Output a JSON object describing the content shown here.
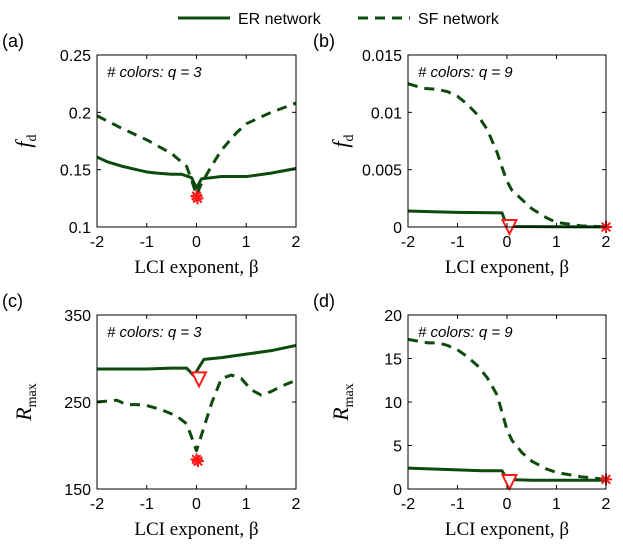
{
  "colors": {
    "er": "#0d4a0d",
    "sf": "#0d4a0d",
    "marker": "#ff1a1a",
    "axis": "#000000"
  },
  "legend": {
    "er_label": "ER network",
    "sf_label": "SF network"
  },
  "chart_data": [
    {
      "type": "line",
      "panel_label": "(a)",
      "annotation": "# colors: q = 3",
      "ylabel": "f",
      "ylabel_sub": "d",
      "xlabel": "LCI exponent, β",
      "xlim": [
        -2,
        2
      ],
      "ylim": [
        0.1,
        0.25
      ],
      "xticks": [
        "-2",
        "-1",
        "0",
        "1",
        "2"
      ],
      "xtick_values": [
        -2,
        -1,
        0,
        1,
        2
      ],
      "yticks": [
        "0.1",
        "0.15",
        "0.2",
        "0.25"
      ],
      "ytick_values": [
        0.1,
        0.15,
        0.2,
        0.25
      ],
      "series": [
        {
          "name": "ER network",
          "style": "solid",
          "x": [
            -2,
            -1.8,
            -1.5,
            -1.2,
            -1,
            -0.8,
            -0.5,
            -0.3,
            -0.1,
            0,
            0.1,
            0.3,
            0.5,
            1,
            1.5,
            2
          ],
          "y": [
            0.161,
            0.157,
            0.153,
            0.15,
            0.148,
            0.147,
            0.146,
            0.146,
            0.143,
            0.134,
            0.142,
            0.143,
            0.144,
            0.144,
            0.147,
            0.151
          ]
        },
        {
          "name": "SF network",
          "style": "dashed",
          "x": [
            -2,
            -1.5,
            -1,
            -0.5,
            -0.2,
            -0.1,
            0,
            0.1,
            0.3,
            0.5,
            0.8,
            1,
            1.5,
            2
          ],
          "y": [
            0.197,
            0.186,
            0.176,
            0.164,
            0.153,
            0.141,
            0.128,
            0.138,
            0.153,
            0.167,
            0.182,
            0.19,
            0.2,
            0.208
          ]
        }
      ],
      "markers": [
        {
          "shape": "star",
          "x": 0,
          "y": 0.127
        },
        {
          "shape": "star",
          "x": 0.02,
          "y": 0.125
        }
      ]
    },
    {
      "type": "line",
      "panel_label": "(b)",
      "annotation": "# colors: q = 9",
      "ylabel": "f",
      "ylabel_sub": "d",
      "xlabel": "LCI exponent, β",
      "xlim": [
        -2,
        2
      ],
      "ylim": [
        0,
        0.015
      ],
      "xticks": [
        "-2",
        "-1",
        "0",
        "1",
        "2"
      ],
      "xtick_values": [
        -2,
        -1,
        0,
        1,
        2
      ],
      "yticks": [
        "0",
        "0.005",
        "0.01",
        "0.015"
      ],
      "ytick_values": [
        0,
        0.005,
        0.01,
        0.015
      ],
      "series": [
        {
          "name": "ER network",
          "style": "solid",
          "x": [
            -2,
            -1.5,
            -1,
            -0.5,
            -0.1,
            0,
            0.5,
            1,
            1.5,
            2
          ],
          "y": [
            0.0014,
            0.00133,
            0.00128,
            0.00125,
            0.00123,
            5e-05,
            3e-05,
            2e-05,
            1e-05,
            1e-05
          ]
        },
        {
          "name": "SF network",
          "style": "dashed",
          "x": [
            -2,
            -1.7,
            -1.4,
            -1.2,
            -1,
            -0.8,
            -0.6,
            -0.4,
            -0.2,
            -0.1,
            0,
            0.1,
            0.3,
            0.5,
            0.8,
            1,
            1.5,
            2
          ],
          "y": [
            0.0125,
            0.0121,
            0.012,
            0.0118,
            0.0114,
            0.0107,
            0.0098,
            0.0085,
            0.0065,
            0.0052,
            0.004,
            0.0032,
            0.0024,
            0.0016,
            0.0008,
            0.0004,
            0.0001,
            0.0
          ]
        }
      ],
      "markers": [
        {
          "shape": "triangle",
          "x": 0.05,
          "y": 0.0
        },
        {
          "shape": "star",
          "x": 2,
          "y": 0.0
        }
      ]
    },
    {
      "type": "line",
      "panel_label": "(c)",
      "annotation": "# colors: q = 3",
      "ylabel": "R",
      "ylabel_sub": "max",
      "xlabel": "LCI exponent, β",
      "xlim": [
        -2,
        2
      ],
      "ylim": [
        150,
        350
      ],
      "xticks": [
        "-2",
        "-1",
        "0",
        "1",
        "2"
      ],
      "xtick_values": [
        -2,
        -1,
        0,
        1,
        2
      ],
      "yticks": [
        "150",
        "250",
        "350"
      ],
      "ytick_values": [
        150,
        250,
        350
      ],
      "series": [
        {
          "name": "ER network",
          "style": "solid",
          "x": [
            -2,
            -1.5,
            -1,
            -0.5,
            -0.2,
            -0.05,
            0.05,
            0.15,
            0.5,
            1,
            1.5,
            2
          ],
          "y": [
            288,
            288,
            288,
            289,
            289,
            280,
            290,
            299,
            301,
            305,
            309,
            315
          ]
        },
        {
          "name": "SF network",
          "style": "dashed",
          "x": [
            -2,
            -1.6,
            -1.4,
            -1.2,
            -1,
            -0.7,
            -0.4,
            -0.2,
            -0.1,
            0,
            0.1,
            0.3,
            0.5,
            0.7,
            0.9,
            1.1,
            1.3,
            1.5,
            1.7,
            2
          ],
          "y": [
            250,
            252,
            247,
            247,
            246,
            241,
            234,
            225,
            210,
            194,
            212,
            248,
            277,
            281,
            277,
            264,
            258,
            262,
            268,
            275
          ]
        }
      ],
      "markers": [
        {
          "shape": "triangle",
          "x": 0.05,
          "y": 276
        },
        {
          "shape": "star",
          "x": 0,
          "y": 184
        },
        {
          "shape": "star",
          "x": 0.03,
          "y": 182
        }
      ]
    },
    {
      "type": "line",
      "panel_label": "(d)",
      "annotation": "# colors: q = 9",
      "ylabel": "R",
      "ylabel_sub": "max",
      "xlabel": "LCI exponent, β",
      "xlim": [
        -2,
        2
      ],
      "ylim": [
        0,
        20
      ],
      "xticks": [
        "-2",
        "-1",
        "0",
        "1",
        "2"
      ],
      "xtick_values": [
        -2,
        -1,
        0,
        1,
        2
      ],
      "yticks": [
        "0",
        "5",
        "10",
        "15",
        "20"
      ],
      "ytick_values": [
        0,
        5,
        10,
        15,
        20
      ],
      "series": [
        {
          "name": "ER network",
          "style": "solid",
          "x": [
            -2,
            -1.5,
            -1,
            -0.5,
            -0.1,
            0,
            0.5,
            1,
            1.5,
            2
          ],
          "y": [
            2.4,
            2.3,
            2.2,
            2.1,
            2.1,
            1.1,
            1.0,
            1.0,
            1.0,
            1.0
          ]
        },
        {
          "name": "SF network",
          "style": "dashed",
          "x": [
            -2,
            -1.8,
            -1.6,
            -1.4,
            -1.2,
            -1,
            -0.8,
            -0.6,
            -0.4,
            -0.2,
            -0.1,
            0,
            0.1,
            0.3,
            0.5,
            0.8,
            1,
            1.5,
            2
          ],
          "y": [
            17.2,
            17.0,
            16.8,
            16.8,
            16.5,
            16.0,
            15.2,
            14.2,
            12.8,
            10.8,
            8.8,
            6.8,
            5.6,
            4.2,
            3.2,
            2.3,
            1.9,
            1.4,
            1.1
          ]
        }
      ],
      "markers": [
        {
          "shape": "triangle",
          "x": 0.05,
          "y": 0.8
        },
        {
          "shape": "star",
          "x": 2,
          "y": 1.1
        }
      ]
    }
  ]
}
